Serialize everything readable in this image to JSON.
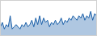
{
  "chart_data": {
    "type": "area",
    "values": [
      4,
      6,
      3,
      5,
      4,
      9,
      3,
      4,
      5,
      4,
      3,
      5,
      4,
      6,
      4,
      5,
      7,
      4,
      8,
      5,
      9,
      5,
      8,
      6,
      7,
      4,
      6,
      5,
      7,
      5,
      6,
      8,
      5,
      7,
      6,
      8,
      7,
      9,
      8,
      7,
      9,
      8,
      10,
      7,
      9,
      8,
      11,
      7,
      10,
      9
    ],
    "color": "#1a5fa8",
    "xlim": [
      0,
      49
    ],
    "ylim": [
      0,
      16
    ],
    "tick_labels": false,
    "grid": false
  }
}
